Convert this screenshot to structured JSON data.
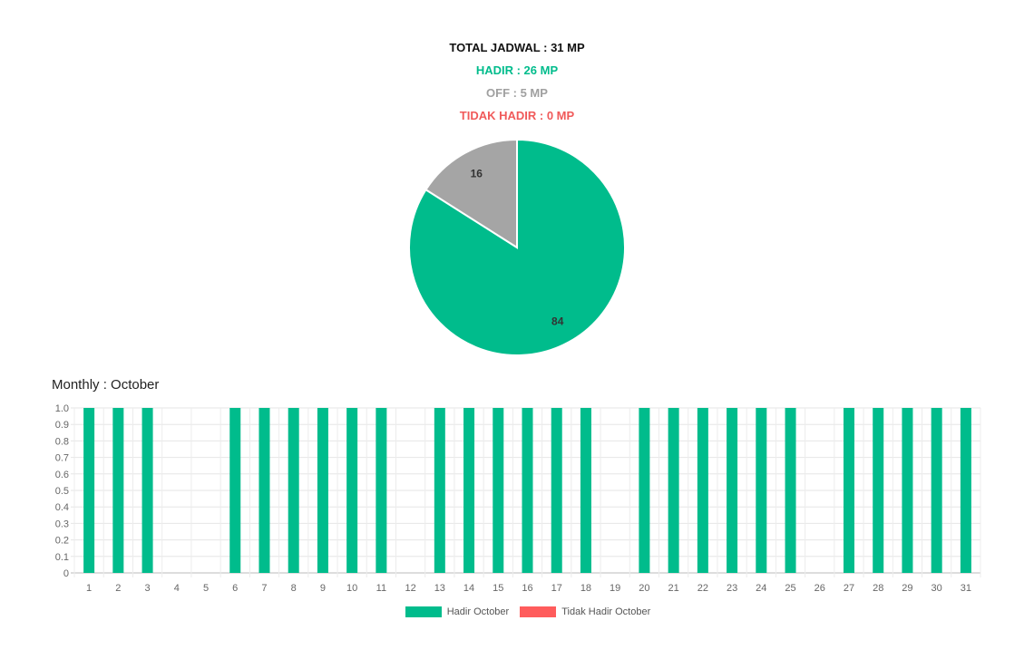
{
  "summary": {
    "total": "TOTAL JADWAL : 31 MP",
    "hadir": "HADIR : 26 MP",
    "off": "OFF : 5 MP",
    "tidak_hadir": "TIDAK HADIR : 0 MP"
  },
  "colors": {
    "total": "#111111",
    "hadir": "#00bc8c",
    "off": "#a0a0a0",
    "tidak_hadir": "#f05a5a"
  },
  "monthly_title": "Monthly : October",
  "chart_data": [
    {
      "type": "pie",
      "slices": [
        {
          "label": "Hadir",
          "value": 84,
          "color": "#00bc8c"
        },
        {
          "label": "Off",
          "value": 16,
          "color": "#a5a5a5"
        }
      ]
    },
    {
      "type": "bar",
      "categories": [
        "1",
        "2",
        "3",
        "4",
        "5",
        "6",
        "7",
        "8",
        "9",
        "10",
        "11",
        "12",
        "13",
        "14",
        "15",
        "16",
        "17",
        "18",
        "19",
        "20",
        "21",
        "22",
        "23",
        "24",
        "25",
        "26",
        "27",
        "28",
        "29",
        "30",
        "31"
      ],
      "series": [
        {
          "name": "Hadir October",
          "color": "#00bc8c",
          "values": [
            1,
            1,
            1,
            0,
            0,
            1,
            1,
            1,
            1,
            1,
            1,
            0,
            1,
            1,
            1,
            1,
            1,
            1,
            0,
            1,
            1,
            1,
            1,
            1,
            1,
            0,
            1,
            1,
            1,
            1,
            1
          ]
        },
        {
          "name": "Tidak Hadir October",
          "color": "#ff5c5c",
          "values": [
            0,
            0,
            0,
            0,
            0,
            0,
            0,
            0,
            0,
            0,
            0,
            0,
            0,
            0,
            0,
            0,
            0,
            0,
            0,
            0,
            0,
            0,
            0,
            0,
            0,
            0,
            0,
            0,
            0,
            0,
            0
          ]
        }
      ],
      "yticks": [
        "0",
        "0.1",
        "0.2",
        "0.3",
        "0.4",
        "0.5",
        "0.6",
        "0.7",
        "0.8",
        "0.9",
        "1.0"
      ],
      "ylim": [
        0,
        1
      ],
      "grid": true,
      "legend": "bottom-center"
    }
  ]
}
